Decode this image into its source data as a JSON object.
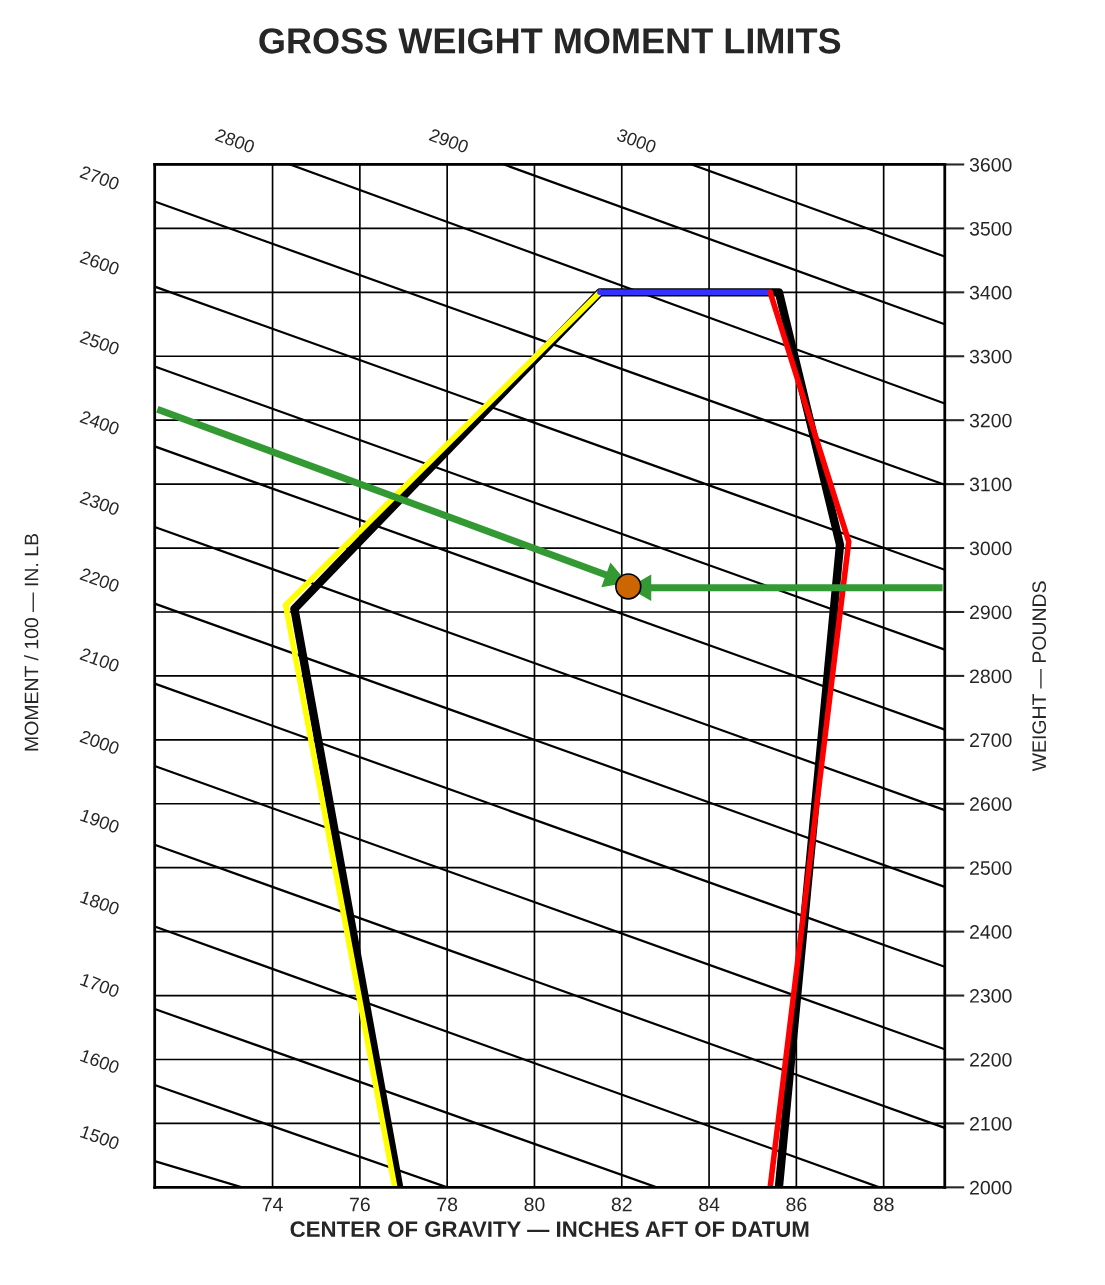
{
  "chart_data": {
    "type": "line",
    "title": "GROSS WEIGHT MOMENT LIMITS",
    "xlabel": "CENTER OF GRAVITY — INCHES AFT OF DATUM",
    "ylabel": "WEIGHT — POUNDS",
    "annotations": [
      "MOMENT / 100 — IN. LB"
    ],
    "xlim": [
      71.3,
      89.4
    ],
    "xticks": [
      74,
      76,
      78,
      80,
      82,
      84,
      86,
      88
    ],
    "ylim": [
      2000,
      3600
    ],
    "yticks": [
      2000,
      2100,
      2200,
      2300,
      2400,
      2500,
      2600,
      2700,
      2800,
      2900,
      3000,
      3100,
      3200,
      3300,
      3400,
      3500,
      3600
    ],
    "grid": true,
    "tick_labels": "xy",
    "series": [
      {
        "name": "2800",
        "type": "line",
        "color": "#000000",
        "x": [
          74.4,
          89.4
        ],
        "values": [
          3600,
          3226
        ]
      },
      {
        "name": "2900",
        "type": "line",
        "color": "#000000",
        "x": [
          79.3,
          89.4
        ],
        "values": [
          3600,
          3350
        ]
      },
      {
        "name": "3000",
        "type": "line",
        "color": "#000000",
        "x": [
          83.6,
          89.4
        ],
        "values": [
          3600,
          3456
        ]
      },
      {
        "name": "2700",
        "type": "line",
        "color": "#000000",
        "x": [
          71.3,
          89.4
        ],
        "values": [
          3542,
          3099
        ]
      },
      {
        "name": "2600",
        "type": "line",
        "color": "#000000",
        "x": [
          71.3,
          89.4
        ],
        "values": [
          3409,
          2966
        ]
      },
      {
        "name": "2500",
        "type": "line",
        "color": "#000000",
        "x": [
          71.3,
          89.4
        ],
        "values": [
          3284,
          2841
        ]
      },
      {
        "name": "2400",
        "type": "line",
        "color": "#000000",
        "x": [
          71.3,
          89.4
        ],
        "values": [
          3159,
          2716
        ]
      },
      {
        "name": "2300",
        "type": "line",
        "color": "#000000",
        "x": [
          71.3,
          89.4
        ],
        "values": [
          3033,
          2590
        ]
      },
      {
        "name": "2200",
        "type": "line",
        "color": "#000000",
        "x": [
          71.3,
          89.4
        ],
        "values": [
          2913,
          2470
        ]
      },
      {
        "name": "2100",
        "type": "line",
        "color": "#000000",
        "x": [
          71.3,
          89.4
        ],
        "values": [
          2788,
          2345
        ]
      },
      {
        "name": "2000",
        "type": "line",
        "color": "#000000",
        "x": [
          71.3,
          89.4
        ],
        "values": [
          2659,
          2216
        ]
      },
      {
        "name": "1900",
        "type": "line",
        "color": "#000000",
        "x": [
          71.3,
          89.4
        ],
        "values": [
          2536,
          2093
        ]
      },
      {
        "name": "1800",
        "type": "line",
        "color": "#000000",
        "x": [
          71.3,
          87.9
        ],
        "values": [
          2408,
          2000
        ]
      },
      {
        "name": "1700",
        "type": "line",
        "color": "#000000",
        "x": [
          71.3,
          82.8
        ],
        "values": [
          2279,
          2000
        ]
      },
      {
        "name": "1600",
        "type": "line",
        "color": "#000000",
        "x": [
          71.3,
          78.0
        ],
        "values": [
          2160,
          2000
        ]
      },
      {
        "name": "1500",
        "type": "line",
        "color": "#000000",
        "x": [
          71.3,
          73.3
        ],
        "values": [
          2041,
          2000
        ]
      },
      {
        "type": "line",
        "color": "#000000",
        "x": [
          76.9,
          74.5,
          81.5,
          85.6,
          87.0,
          85.6
        ],
        "values": [
          2000,
          2905,
          3400,
          3400,
          3005,
          2000
        ]
      },
      {
        "type": "line",
        "color": "#ffff00",
        "x": [
          76.8,
          74.3,
          81.5
        ],
        "values": [
          2000,
          2911,
          3400
        ]
      },
      {
        "type": "line",
        "color": "#3333ff",
        "x": [
          81.5,
          85.4
        ],
        "values": [
          3400,
          3400
        ]
      },
      {
        "type": "line",
        "color": "#ff0000",
        "x": [
          85.4,
          87.2,
          85.4
        ],
        "values": [
          3400,
          3010,
          2000
        ]
      },
      {
        "marker": "triangle",
        "color": "#339933",
        "x": [
          71.36,
          81.8
        ],
        "values": [
          3217,
          2954
        ]
      },
      {
        "marker": "triangle",
        "color": "#339933",
        "x": [
          89.35,
          82.5
        ],
        "values": [
          2938,
          2938
        ]
      },
      {
        "type": "scatter",
        "color": "#cc6600",
        "marker": "circle",
        "x": [
          82.15
        ],
        "values": [
          2940
        ]
      }
    ]
  }
}
